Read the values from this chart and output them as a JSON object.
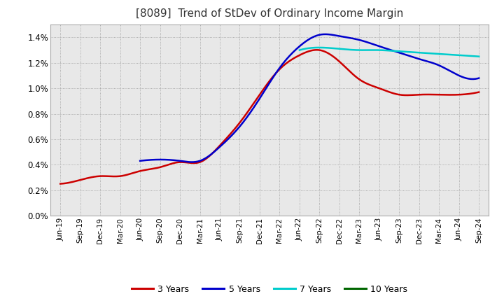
{
  "title": "[8089]  Trend of StDev of Ordinary Income Margin",
  "background_color": "#ffffff",
  "plot_bg_color": "#e8e8e8",
  "grid_color": "#aaaaaa",
  "xlabels": [
    "Jun-19",
    "Sep-19",
    "Dec-19",
    "Mar-20",
    "Jun-20",
    "Sep-20",
    "Dec-20",
    "Mar-21",
    "Jun-21",
    "Sep-21",
    "Dec-21",
    "Mar-22",
    "Jun-22",
    "Sep-22",
    "Dec-22",
    "Mar-23",
    "Jun-23",
    "Sep-23",
    "Dec-23",
    "Mar-24",
    "Jun-24",
    "Sep-24"
  ],
  "series": {
    "3 Years": {
      "color": "#cc0000",
      "values": [
        0.0025,
        0.0028,
        0.0031,
        0.0031,
        0.0035,
        0.0038,
        0.0042,
        0.0042,
        0.0055,
        0.0073,
        0.0095,
        0.0115,
        0.0126,
        0.013,
        0.0121,
        0.0107,
        0.01,
        0.0095,
        0.0095,
        0.0095,
        0.0095,
        0.0097
      ]
    },
    "5 Years": {
      "color": "#0000cc",
      "values": [
        null,
        null,
        null,
        null,
        0.0043,
        0.0044,
        0.0043,
        0.0043,
        0.0054,
        0.007,
        0.0092,
        0.0116,
        0.0133,
        0.0142,
        0.0141,
        0.0138,
        0.0133,
        0.0128,
        0.0123,
        0.0118,
        0.011,
        0.0108
      ]
    },
    "7 Years": {
      "color": "#00cccc",
      "values": [
        null,
        null,
        null,
        null,
        null,
        null,
        null,
        null,
        null,
        null,
        null,
        null,
        0.013,
        0.0132,
        0.0131,
        0.013,
        0.013,
        0.0129,
        0.0128,
        0.0127,
        0.0126,
        0.0125
      ]
    },
    "10 Years": {
      "color": "#006600",
      "values": [
        null,
        null,
        null,
        null,
        null,
        null,
        null,
        null,
        null,
        null,
        null,
        null,
        null,
        null,
        null,
        null,
        null,
        null,
        null,
        null,
        null,
        null
      ]
    }
  },
  "ylim": [
    0.0,
    0.015
  ],
  "yticks": [
    0.0,
    0.002,
    0.004,
    0.006,
    0.008,
    0.01,
    0.012,
    0.014
  ],
  "legend_labels": [
    "3 Years",
    "5 Years",
    "7 Years",
    "10 Years"
  ],
  "legend_colors": [
    "#cc0000",
    "#0000cc",
    "#00cccc",
    "#006600"
  ]
}
